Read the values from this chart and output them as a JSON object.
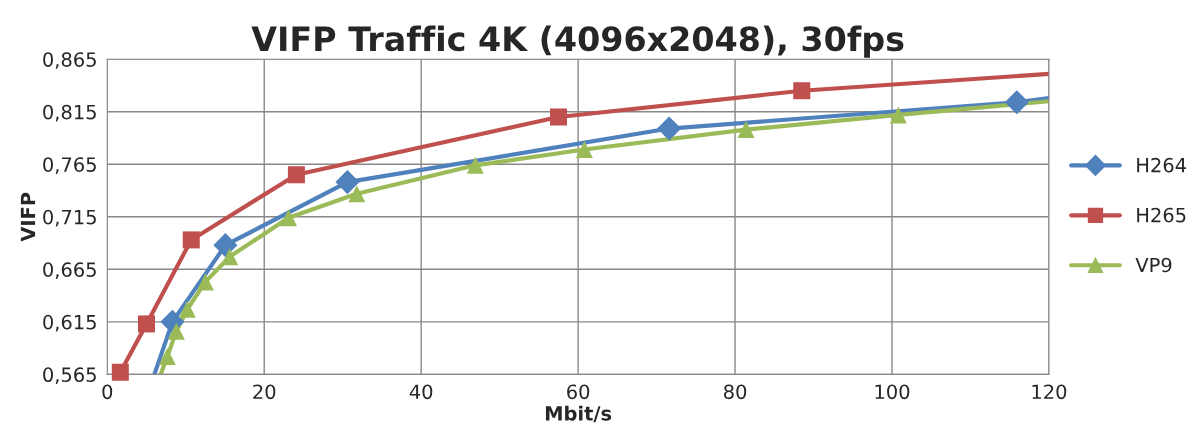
{
  "chart_data": {
    "type": "line",
    "title": "VIFP Traffic 4K (4096x2048), 30fps",
    "xlabel": "Mbit/s",
    "ylabel": "VIFP",
    "xlim": [
      0,
      120
    ],
    "xticks": [
      0,
      20,
      40,
      60,
      80,
      100,
      120
    ],
    "ylim": [
      0.565,
      0.865
    ],
    "yticks": [
      {
        "value": 0.565,
        "label": "0,565"
      },
      {
        "value": 0.615,
        "label": "0,615"
      },
      {
        "value": 0.665,
        "label": "0,665"
      },
      {
        "value": 0.715,
        "label": "0,715"
      },
      {
        "value": 0.765,
        "label": "0,765"
      },
      {
        "value": 0.815,
        "label": "0,815"
      },
      {
        "value": 0.865,
        "label": "0,865"
      }
    ],
    "grid": true,
    "legend": "right",
    "series": [
      {
        "color": "#4f81bd",
        "marker": "none",
        "x": [
          6.0,
          8.3,
          15.05,
          30.6,
          71.6,
          115.9,
          120
        ],
        "values": [
          0.565,
          0.615,
          0.688,
          0.748,
          0.799,
          0.824,
          0.828
        ]
      },
      {
        "color": "#c0504d",
        "marker": "none",
        "x": [
          1.66,
          5.0,
          10.7,
          24.1,
          57.5,
          88.5,
          120
        ],
        "values": [
          0.567,
          0.613,
          0.693,
          0.755,
          0.81,
          0.835,
          0.851
        ]
      },
      {
        "color": "#9bbb59",
        "marker": "none",
        "x": [
          6.8,
          7.65,
          8.8,
          10.2,
          12.5,
          15.6,
          23.1,
          31.8,
          46.9,
          60.8,
          81.4,
          100.8,
          120
        ],
        "values": [
          0.565,
          0.582,
          0.606,
          0.627,
          0.653,
          0.677,
          0.714,
          0.737,
          0.764,
          0.779,
          0.798,
          0.812,
          0.825
        ]
      },
      {
        "type": "scatter",
        "name": "H264",
        "color": "#4f81bd",
        "marker": "diamond",
        "x": [
          8.3,
          15.05,
          30.6,
          71.6,
          115.9
        ],
        "values": [
          0.615,
          0.688,
          0.748,
          0.799,
          0.824
        ]
      },
      {
        "type": "scatter",
        "name": "H265",
        "color": "#c0504d",
        "marker": "square",
        "x": [
          1.66,
          5.0,
          10.7,
          24.1,
          57.5,
          88.5
        ],
        "values": [
          0.567,
          0.613,
          0.693,
          0.755,
          0.81,
          0.835
        ]
      },
      {
        "type": "scatter",
        "name": "VP9",
        "color": "#9bbb59",
        "marker": "triangle",
        "x": [
          7.65,
          8.8,
          10.2,
          12.5,
          15.6,
          23.1,
          31.8,
          46.9,
          60.8,
          81.4,
          100.8
        ],
        "values": [
          0.582,
          0.606,
          0.627,
          0.653,
          0.677,
          0.714,
          0.737,
          0.764,
          0.779,
          0.798,
          0.812
        ]
      }
    ]
  }
}
